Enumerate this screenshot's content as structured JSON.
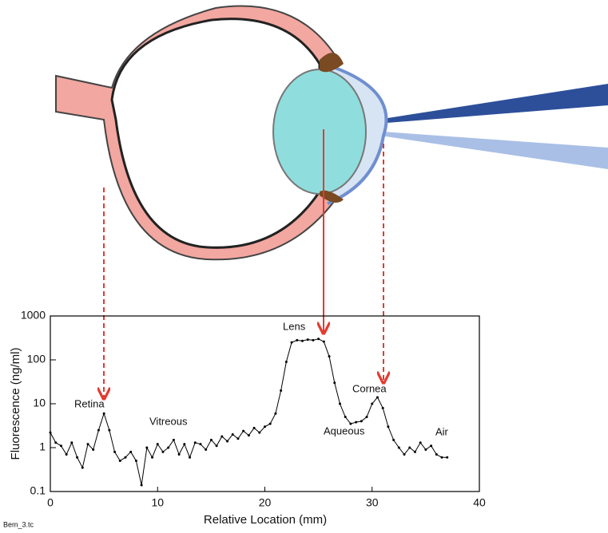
{
  "chart_data": {
    "type": "line",
    "log_y": true,
    "xlabel": "Relative Location (mm)",
    "ylabel": "Fluorescence (ng/ml)",
    "footnote": "Bem_3.tc",
    "annotations": [
      "Retina",
      "Vitreous",
      "Lens",
      "Aqueous",
      "Cornea",
      "Air"
    ],
    "xlim": [
      0,
      40
    ],
    "xticks": [
      0,
      10,
      20,
      30,
      40
    ],
    "ylim": [
      0.1,
      1000
    ],
    "yticks": [
      0.1,
      1,
      10,
      100,
      1000
    ],
    "series": [
      {
        "color": "#000000",
        "x": [
          0,
          0.5,
          1,
          1.5,
          2,
          2.5,
          3,
          3.5,
          4,
          4.5,
          5,
          5.5,
          6,
          6.5,
          7,
          7.5,
          8,
          8.5,
          9,
          9.5,
          10,
          10.5,
          11,
          11.5,
          12,
          12.5,
          13,
          13.5,
          14,
          14.5,
          15,
          15.5,
          16,
          16.5,
          17,
          17.5,
          18,
          18.5,
          19,
          19.5,
          20,
          20.5,
          21,
          21.5,
          22,
          22.5,
          23,
          23.5,
          24,
          24.5,
          25,
          25.5,
          26,
          26.5,
          27,
          27.5,
          28,
          28.5,
          29,
          29.5,
          30,
          30.5,
          31,
          31.5,
          32,
          32.5,
          33,
          33.5,
          34,
          34.5,
          35,
          35.5,
          36,
          36.5,
          37
        ],
        "values": [
          2.2,
          1.3,
          1.1,
          0.7,
          1.3,
          0.6,
          0.35,
          1.2,
          0.9,
          2.5,
          6,
          2.5,
          0.8,
          0.5,
          0.6,
          0.8,
          0.5,
          0.14,
          1.0,
          0.6,
          1.2,
          0.8,
          1.0,
          1.5,
          0.7,
          1.2,
          0.6,
          1.3,
          1.2,
          0.9,
          1.5,
          1.1,
          1.8,
          1.4,
          2.0,
          1.6,
          2.4,
          1.9,
          2.8,
          2.2,
          3.0,
          3.5,
          6,
          20,
          90,
          250,
          280,
          270,
          290,
          280,
          300,
          260,
          120,
          30,
          10,
          5,
          3.5,
          3.8,
          4,
          5,
          10,
          14,
          8,
          3,
          1.5,
          1.0,
          0.7,
          1.0,
          0.8,
          1.3,
          0.9,
          1.1,
          0.7,
          0.6,
          0.6
        ]
      }
    ]
  }
}
